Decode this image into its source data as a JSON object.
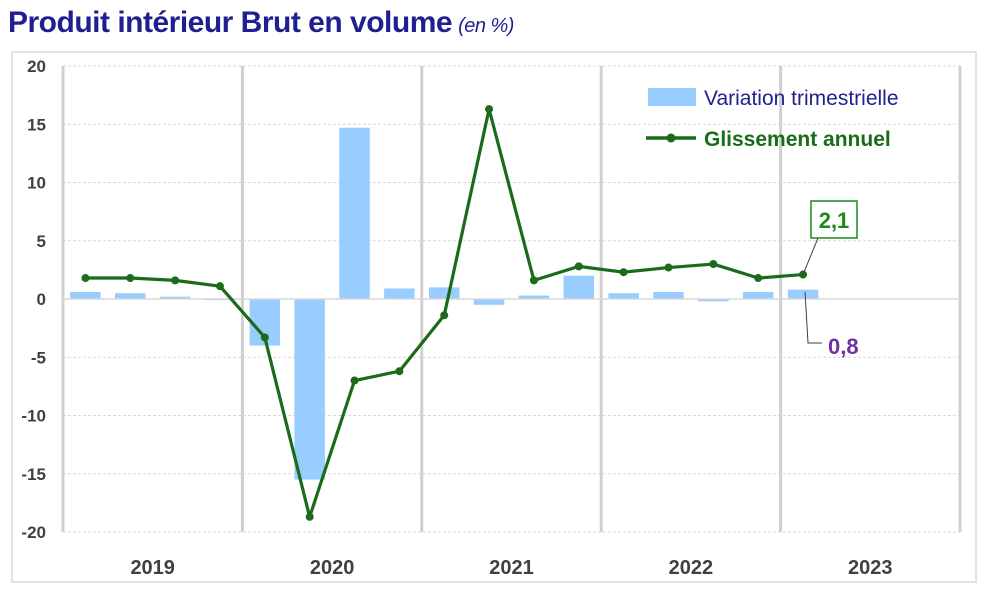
{
  "title": "Produit intérieur Brut en volume",
  "title_unit": "(en %)",
  "chart_data": {
    "type": "bar",
    "ylim": [
      -20,
      20
    ],
    "yticks": [
      20,
      15,
      10,
      5,
      0,
      -5,
      -10,
      -15,
      -20
    ],
    "year_labels": [
      "2019",
      "2020",
      "2021",
      "2022",
      "2023"
    ],
    "series": [
      {
        "name": "Variation trimestrielle",
        "type": "bar",
        "color": "#99ccff",
        "values": [
          0.6,
          0.5,
          0.2,
          -0.1,
          -4.0,
          -15.5,
          14.7,
          0.9,
          1.0,
          -0.5,
          0.3,
          2.0,
          0.5,
          0.6,
          -0.2,
          0.6,
          0.8
        ]
      },
      {
        "name": "Glissement annuel",
        "type": "line",
        "color": "#1a6b1a",
        "values": [
          1.8,
          1.8,
          1.6,
          1.1,
          -3.3,
          -18.7,
          -7.0,
          -6.2,
          -1.4,
          16.3,
          1.6,
          2.8,
          2.3,
          2.7,
          3.0,
          1.8,
          2.1
        ]
      }
    ],
    "legend_position": "top-right",
    "grid": true,
    "annotations": [
      {
        "text": "2,1",
        "series": "Glissement annuel",
        "color": "#1a8a1a"
      },
      {
        "text": "0,8",
        "series": "Variation trimestrielle",
        "color": "#7030a0"
      }
    ]
  }
}
